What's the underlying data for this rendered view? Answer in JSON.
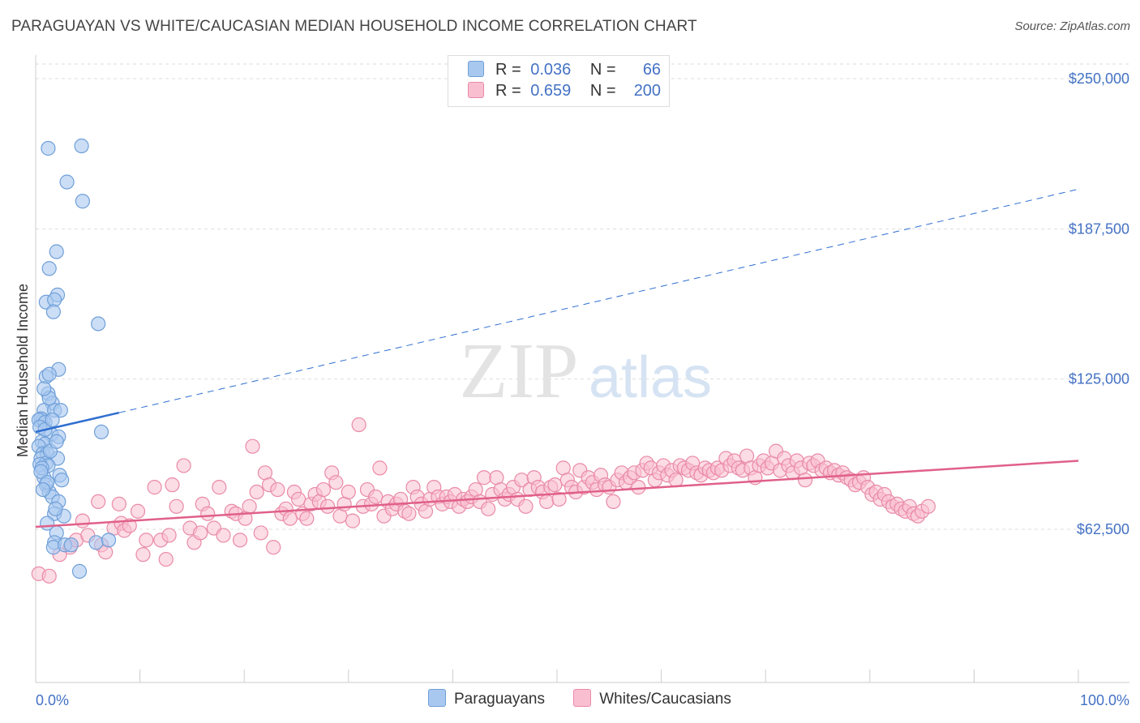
{
  "header": {
    "title": "PARAGUAYAN VS WHITE/CAUCASIAN MEDIAN HOUSEHOLD INCOME CORRELATION CHART",
    "source": "Source: ZipAtlas.com"
  },
  "watermark": {
    "zip": "ZIP",
    "atlas": "atlas"
  },
  "legend": {
    "rows": [
      {
        "r_label": "R =",
        "r_value": "0.036",
        "n_label": "N =",
        "n_value": "66",
        "color": "#a8c8f0",
        "border": "#6f9fd8"
      },
      {
        "r_label": "R =",
        "r_value": "0.659",
        "n_label": "N =",
        "n_value": "200",
        "color": "#f9bfd0",
        "border": "#e98aa8"
      }
    ]
  },
  "bottom_legend": [
    {
      "label": "Paraguayans",
      "color": "#a8c8f0",
      "border": "#6f9fd8"
    },
    {
      "label": "Whites/Caucasians",
      "color": "#f9bfd0",
      "border": "#e98aa8"
    }
  ],
  "chart_data": {
    "type": "scatter",
    "ylabel": "Median Household Income",
    "xlabel": "",
    "xlim": [
      0,
      100
    ],
    "ylim": [
      0,
      260000
    ],
    "y_ticks": [
      {
        "value": 250000,
        "label": "$250,000"
      },
      {
        "value": 187500,
        "label": "$187,500"
      },
      {
        "value": 125000,
        "label": "$125,000"
      },
      {
        "value": 62500,
        "label": "$62,500"
      }
    ],
    "x_tick_labels": {
      "left": "0.0%",
      "right": "100.0%"
    },
    "grid": true,
    "colors": {
      "blue_fill": "#a8c8f0",
      "blue_stroke": "#6f9fd8",
      "blue_line": "#2f6fd0",
      "pink_fill": "#f9bfd0",
      "pink_stroke": "#e98aa8",
      "pink_line": "#e0608a"
    },
    "series": [
      {
        "name": "Paraguayans",
        "points": [
          [
            1.2,
            221000
          ],
          [
            4.4,
            222000
          ],
          [
            3.0,
            207000
          ],
          [
            4.5,
            199000
          ],
          [
            2.0,
            178000
          ],
          [
            1.3,
            171000
          ],
          [
            2.1,
            160000
          ],
          [
            1.0,
            157000
          ],
          [
            1.8,
            158000
          ],
          [
            1.7,
            153000
          ],
          [
            6.0,
            148000
          ],
          [
            2.2,
            129000
          ],
          [
            1.0,
            126000
          ],
          [
            1.3,
            127000
          ],
          [
            1.2,
            119000
          ],
          [
            1.6,
            115000
          ],
          [
            0.8,
            112000
          ],
          [
            1.8,
            112000
          ],
          [
            0.7,
            108000
          ],
          [
            0.5,
            108500
          ],
          [
            0.3,
            108000
          ],
          [
            0.9,
            107000
          ],
          [
            0.4,
            105000
          ],
          [
            1.5,
            102000
          ],
          [
            2.2,
            101000
          ],
          [
            6.3,
            103000
          ],
          [
            0.6,
            99000
          ],
          [
            0.9,
            98000
          ],
          [
            0.3,
            97000
          ],
          [
            0.7,
            94000
          ],
          [
            1.1,
            94000
          ],
          [
            2.1,
            92000
          ],
          [
            0.5,
            92000
          ],
          [
            1.0,
            90000
          ],
          [
            1.2,
            89000
          ],
          [
            0.4,
            89500
          ],
          [
            2.3,
            85000
          ],
          [
            2.5,
            83000
          ],
          [
            0.8,
            84000
          ],
          [
            1.0,
            81000
          ],
          [
            1.3,
            78000
          ],
          [
            1.6,
            76000
          ],
          [
            2.2,
            74000
          ],
          [
            1.8,
            69000
          ],
          [
            2.7,
            68000
          ],
          [
            1.1,
            65000
          ],
          [
            2.0,
            61000
          ],
          [
            1.8,
            57000
          ],
          [
            1.7,
            55000
          ],
          [
            2.8,
            56000
          ],
          [
            3.4,
            56000
          ],
          [
            5.8,
            57000
          ],
          [
            7.0,
            58000
          ],
          [
            4.2,
            45000
          ],
          [
            0.6,
            88000
          ],
          [
            0.5,
            86500
          ],
          [
            1.4,
            95000
          ],
          [
            0.9,
            104000
          ],
          [
            2.4,
            112000
          ],
          [
            1.3,
            117000
          ],
          [
            0.8,
            121000
          ],
          [
            1.6,
            108000
          ],
          [
            2.0,
            99000
          ],
          [
            1.1,
            82000
          ],
          [
            0.7,
            79000
          ],
          [
            1.9,
            71000
          ]
        ]
      },
      {
        "name": "Whites/Caucasians",
        "points": [
          [
            0.3,
            44000
          ],
          [
            1.3,
            43000
          ],
          [
            3.3,
            55000
          ],
          [
            3.9,
            58000
          ],
          [
            2.3,
            52000
          ],
          [
            4.5,
            66000
          ],
          [
            5.0,
            60000
          ],
          [
            6.0,
            74000
          ],
          [
            6.3,
            56000
          ],
          [
            6.7,
            53000
          ],
          [
            7.5,
            63000
          ],
          [
            8.0,
            73000
          ],
          [
            8.2,
            65000
          ],
          [
            8.5,
            62000
          ],
          [
            9.0,
            64000
          ],
          [
            9.8,
            70000
          ],
          [
            10.3,
            52000
          ],
          [
            10.6,
            58000
          ],
          [
            11.4,
            80000
          ],
          [
            12.0,
            58000
          ],
          [
            12.5,
            50000
          ],
          [
            12.8,
            60000
          ],
          [
            13.1,
            81000
          ],
          [
            13.5,
            72000
          ],
          [
            14.2,
            89000
          ],
          [
            14.8,
            63000
          ],
          [
            15.2,
            57000
          ],
          [
            15.8,
            61000
          ],
          [
            16.0,
            73000
          ],
          [
            16.5,
            69000
          ],
          [
            17.1,
            63000
          ],
          [
            17.6,
            80000
          ],
          [
            18.0,
            60000
          ],
          [
            18.8,
            70000
          ],
          [
            19.2,
            69000
          ],
          [
            19.6,
            58000
          ],
          [
            20.1,
            67000
          ],
          [
            20.5,
            72000
          ],
          [
            20.8,
            97000
          ],
          [
            21.2,
            78000
          ],
          [
            21.6,
            61000
          ],
          [
            22.0,
            86000
          ],
          [
            22.4,
            81000
          ],
          [
            22.8,
            55000
          ],
          [
            23.2,
            79000
          ],
          [
            23.6,
            69000
          ],
          [
            24.0,
            71000
          ],
          [
            24.4,
            67000
          ],
          [
            24.8,
            78000
          ],
          [
            25.2,
            75000
          ],
          [
            25.6,
            69000
          ],
          [
            26.0,
            67000
          ],
          [
            26.4,
            73000
          ],
          [
            26.8,
            77000
          ],
          [
            27.2,
            74000
          ],
          [
            27.6,
            79000
          ],
          [
            28.0,
            72000
          ],
          [
            28.4,
            86000
          ],
          [
            28.8,
            82000
          ],
          [
            29.2,
            68000
          ],
          [
            29.6,
            73000
          ],
          [
            30.0,
            78000
          ],
          [
            30.4,
            66000
          ],
          [
            31.0,
            106000
          ],
          [
            31.4,
            72000
          ],
          [
            31.8,
            79000
          ],
          [
            32.2,
            73000
          ],
          [
            32.6,
            76000
          ],
          [
            33.0,
            88000
          ],
          [
            33.4,
            68000
          ],
          [
            33.8,
            74000
          ],
          [
            34.2,
            71000
          ],
          [
            34.6,
            73000
          ],
          [
            35.0,
            75000
          ],
          [
            35.4,
            70000
          ],
          [
            35.8,
            69000
          ],
          [
            36.2,
            80000
          ],
          [
            36.6,
            76000
          ],
          [
            37.0,
            73000
          ],
          [
            37.4,
            70000
          ],
          [
            37.8,
            75000
          ],
          [
            38.2,
            80000
          ],
          [
            38.6,
            76000
          ],
          [
            39.0,
            73000
          ],
          [
            39.4,
            76000
          ],
          [
            39.8,
            74000
          ],
          [
            40.2,
            77000
          ],
          [
            40.6,
            72000
          ],
          [
            41.0,
            75000
          ],
          [
            41.4,
            74000
          ],
          [
            41.8,
            76000
          ],
          [
            42.2,
            79000
          ],
          [
            42.6,
            74000
          ],
          [
            43.0,
            84000
          ],
          [
            43.4,
            71000
          ],
          [
            43.8,
            77000
          ],
          [
            44.2,
            84000
          ],
          [
            44.6,
            79000
          ],
          [
            45.0,
            75000
          ],
          [
            45.4,
            77000
          ],
          [
            45.8,
            80000
          ],
          [
            46.2,
            75000
          ],
          [
            46.6,
            83000
          ],
          [
            47.0,
            72000
          ],
          [
            47.4,
            79000
          ],
          [
            47.8,
            84000
          ],
          [
            48.2,
            80000
          ],
          [
            48.6,
            78000
          ],
          [
            49.0,
            74000
          ],
          [
            49.4,
            80000
          ],
          [
            49.8,
            81000
          ],
          [
            50.2,
            75000
          ],
          [
            50.6,
            88000
          ],
          [
            51.0,
            83000
          ],
          [
            51.4,
            80000
          ],
          [
            51.8,
            78000
          ],
          [
            52.2,
            87000
          ],
          [
            52.6,
            80000
          ],
          [
            53.0,
            84000
          ],
          [
            53.4,
            82000
          ],
          [
            53.8,
            79000
          ],
          [
            54.2,
            85000
          ],
          [
            54.6,
            81000
          ],
          [
            55.0,
            80000
          ],
          [
            55.4,
            74000
          ],
          [
            55.8,
            83000
          ],
          [
            56.2,
            86000
          ],
          [
            56.6,
            82000
          ],
          [
            57.0,
            84000
          ],
          [
            57.4,
            86000
          ],
          [
            57.8,
            80000
          ],
          [
            58.2,
            87000
          ],
          [
            58.6,
            90000
          ],
          [
            59.0,
            88000
          ],
          [
            59.4,
            83000
          ],
          [
            59.8,
            86000
          ],
          [
            60.2,
            89000
          ],
          [
            60.6,
            85000
          ],
          [
            61.0,
            87000
          ],
          [
            61.4,
            83000
          ],
          [
            61.8,
            89000
          ],
          [
            62.2,
            88000
          ],
          [
            62.6,
            87000
          ],
          [
            63.0,
            90000
          ],
          [
            63.4,
            86000
          ],
          [
            63.8,
            85000
          ],
          [
            64.2,
            88000
          ],
          [
            64.6,
            87000
          ],
          [
            65.0,
            86000
          ],
          [
            65.4,
            88000
          ],
          [
            65.8,
            87000
          ],
          [
            66.2,
            92000
          ],
          [
            66.6,
            89000
          ],
          [
            67.0,
            91000
          ],
          [
            67.4,
            88000
          ],
          [
            67.8,
            87000
          ],
          [
            68.2,
            93000
          ],
          [
            68.6,
            88000
          ],
          [
            69.0,
            84000
          ],
          [
            69.4,
            89000
          ],
          [
            69.8,
            91000
          ],
          [
            70.2,
            88000
          ],
          [
            70.6,
            90000
          ],
          [
            71.0,
            95000
          ],
          [
            71.4,
            87000
          ],
          [
            71.8,
            92000
          ],
          [
            72.2,
            89000
          ],
          [
            72.6,
            86000
          ],
          [
            73.0,
            91000
          ],
          [
            73.4,
            88000
          ],
          [
            73.8,
            83000
          ],
          [
            74.2,
            90000
          ],
          [
            74.6,
            89000
          ],
          [
            75.0,
            91000
          ],
          [
            75.4,
            87000
          ],
          [
            75.8,
            88000
          ],
          [
            76.2,
            86000
          ],
          [
            76.6,
            87000
          ],
          [
            77.0,
            85000
          ],
          [
            77.4,
            86000
          ],
          [
            77.8,
            84000
          ],
          [
            78.2,
            83000
          ],
          [
            78.6,
            81000
          ],
          [
            79.0,
            82000
          ],
          [
            79.4,
            84000
          ],
          [
            79.8,
            80000
          ],
          [
            80.2,
            77000
          ],
          [
            80.6,
            78000
          ],
          [
            81.0,
            75000
          ],
          [
            81.4,
            77000
          ],
          [
            81.8,
            74000
          ],
          [
            82.2,
            72000
          ],
          [
            82.6,
            73000
          ],
          [
            83.0,
            71000
          ],
          [
            83.4,
            70000
          ],
          [
            83.8,
            72000
          ],
          [
            84.2,
            69000
          ],
          [
            84.6,
            68000
          ],
          [
            85.0,
            70000
          ],
          [
            85.6,
            72000
          ]
        ]
      }
    ],
    "trendlines": [
      {
        "series": "Paraguayans",
        "solid": [
          [
            0,
            103000
          ],
          [
            8,
            111000
          ]
        ],
        "dashed": [
          [
            8,
            111000
          ],
          [
            100,
            204000
          ]
        ]
      },
      {
        "series": "Whites/Caucasians",
        "solid": [
          [
            0,
            63500
          ],
          [
            100,
            91000
          ]
        ]
      }
    ]
  }
}
